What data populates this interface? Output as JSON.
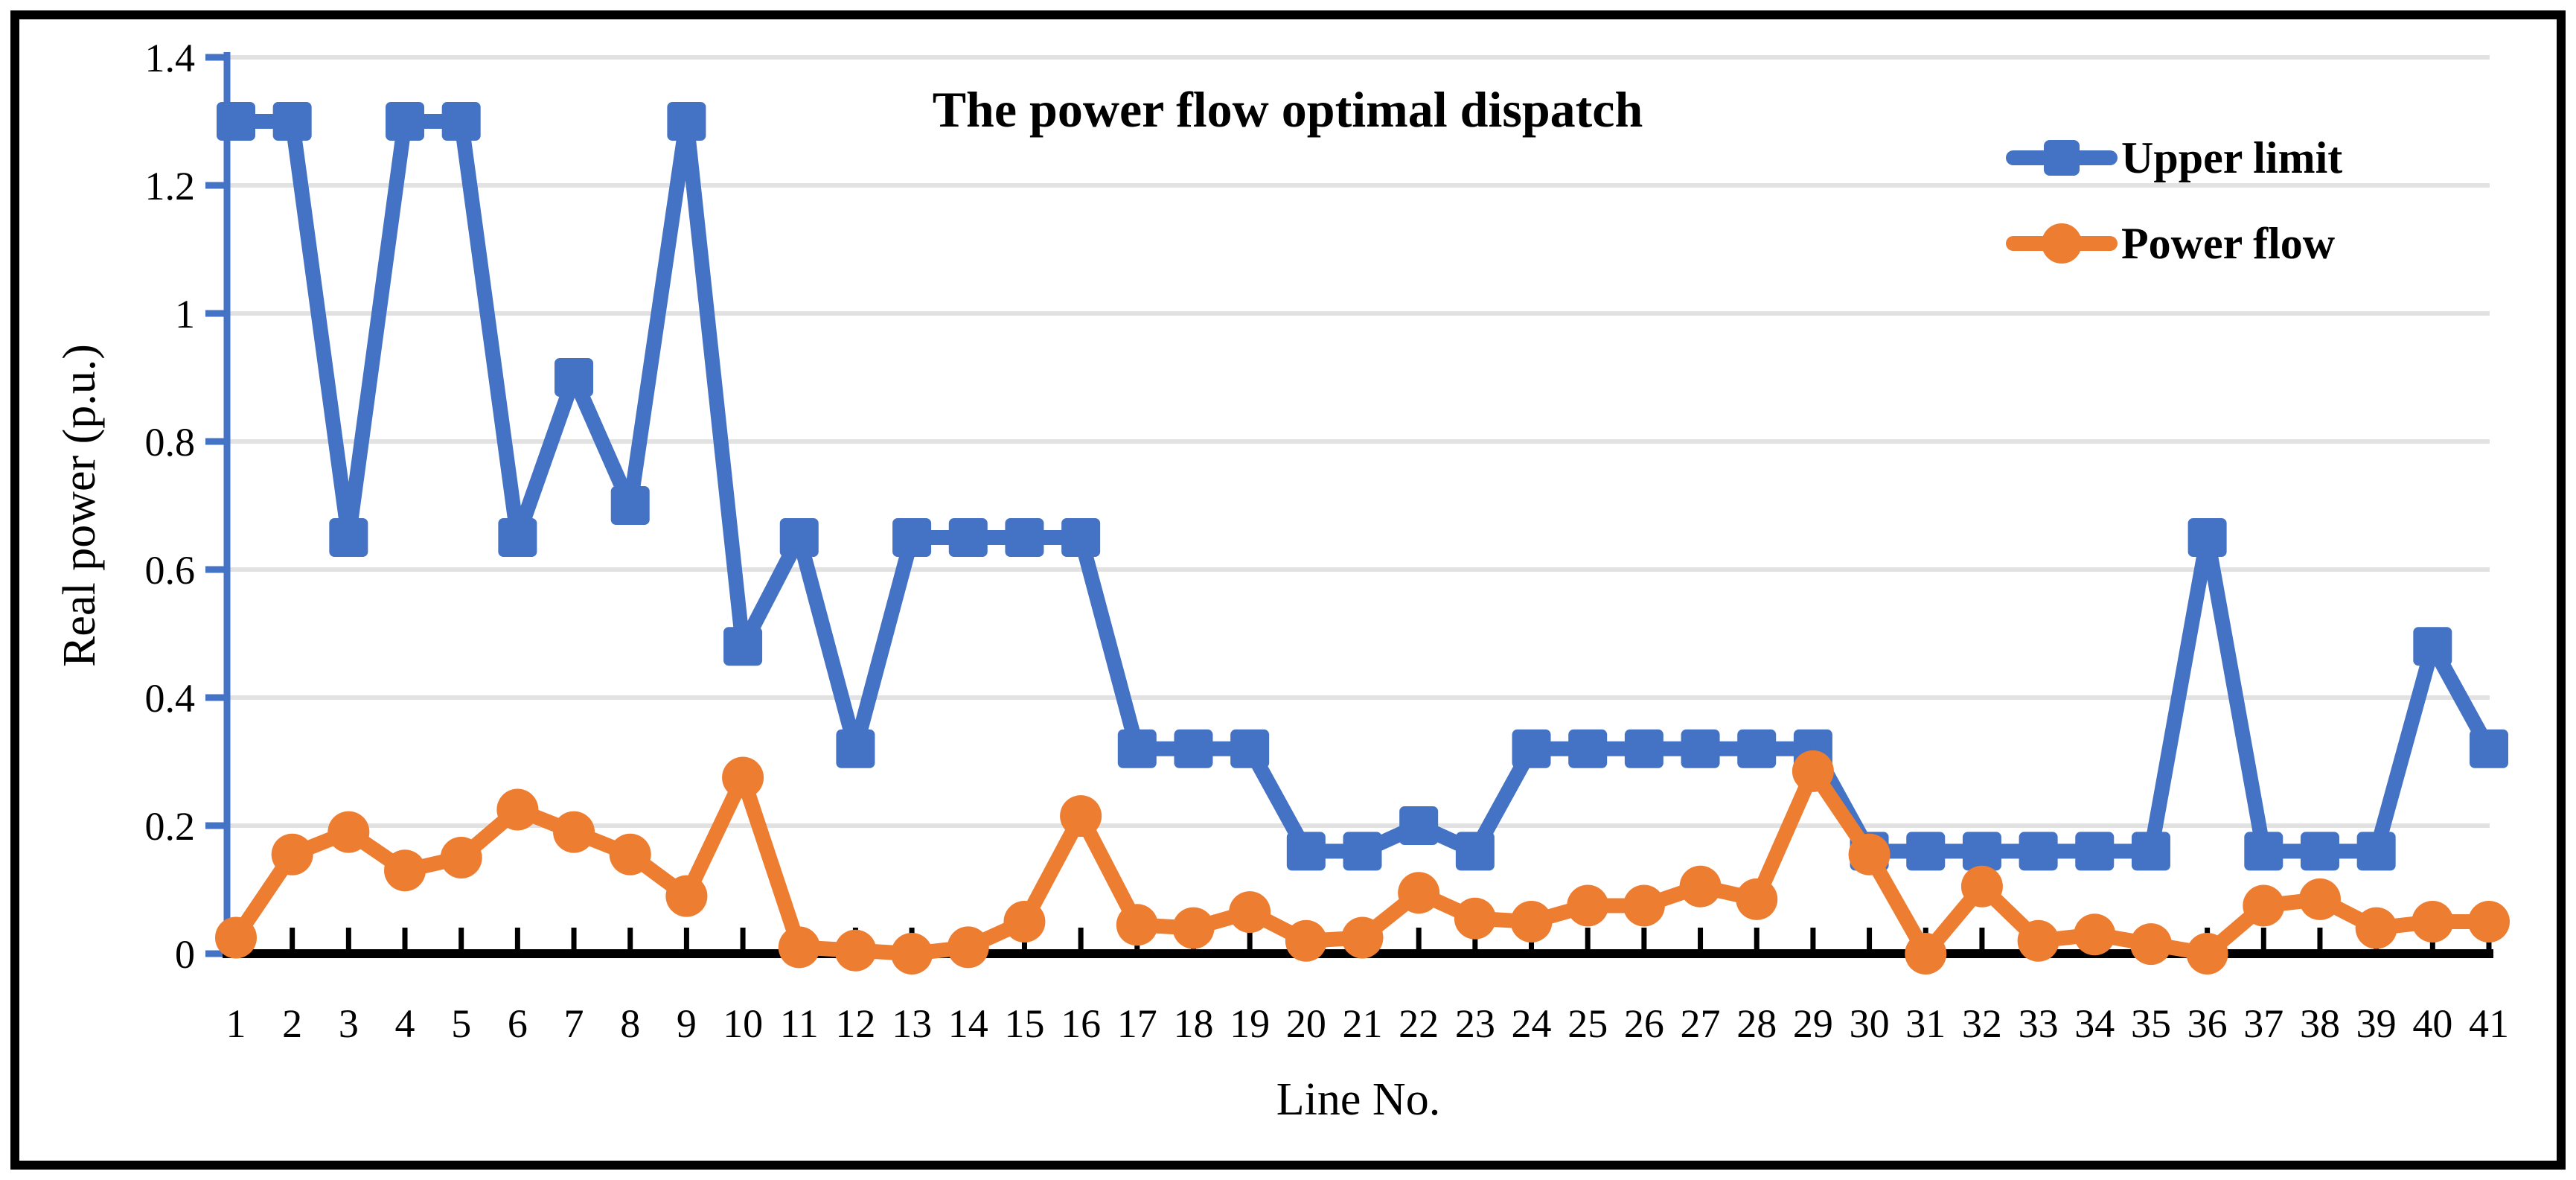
{
  "figure": {
    "title": "The power flow optimal dispatch",
    "x_axis_title": "Line No.",
    "y_axis_title": "Real power (p.u.)",
    "legend": {
      "position": "top-right",
      "entries": [
        {
          "label": "Upper limit",
          "marker": "square",
          "color": "#4472C4"
        },
        {
          "label": "Power flow",
          "marker": "circle",
          "color": "#ED7D31"
        }
      ]
    }
  },
  "chart_data": {
    "type": "line",
    "title": "The power flow optimal dispatch",
    "xlabel": "Line No.",
    "ylabel": "Real power (p.u.)",
    "categories": [
      1,
      2,
      3,
      4,
      5,
      6,
      7,
      8,
      9,
      10,
      11,
      12,
      13,
      14,
      15,
      16,
      17,
      18,
      19,
      20,
      21,
      22,
      23,
      24,
      25,
      26,
      27,
      28,
      29,
      30,
      31,
      32,
      33,
      34,
      35,
      36,
      37,
      38,
      39,
      40,
      41
    ],
    "series": [
      {
        "name": "Upper limit",
        "color": "#4472C4",
        "marker": "square",
        "values": [
          1.3,
          1.3,
          0.65,
          1.3,
          1.3,
          0.65,
          0.9,
          0.7,
          1.3,
          0.48,
          0.65,
          0.32,
          0.65,
          0.65,
          0.65,
          0.65,
          0.32,
          0.32,
          0.32,
          0.16,
          0.16,
          0.2,
          0.16,
          0.32,
          0.32,
          0.32,
          0.32,
          0.32,
          0.32,
          0.16,
          0.16,
          0.16,
          0.16,
          0.16,
          0.16,
          0.65,
          0.16,
          0.16,
          0.16,
          0.48,
          0.32
        ]
      },
      {
        "name": "Power flow",
        "color": "#ED7D31",
        "marker": "circle",
        "values": [
          0.025,
          0.155,
          0.19,
          0.13,
          0.15,
          0.225,
          0.19,
          0.155,
          0.09,
          0.275,
          0.01,
          0.005,
          0,
          0.01,
          0.05,
          0.215,
          0.045,
          0.04,
          0.065,
          0.02,
          0.025,
          0.095,
          0.055,
          0.05,
          0.075,
          0.075,
          0.105,
          0.085,
          0.285,
          0.155,
          0,
          0.105,
          0.02,
          0.03,
          0.015,
          0,
          0.075,
          0.085,
          0.04,
          0.05,
          0.05
        ]
      }
    ],
    "ylim": [
      0,
      1.4
    ],
    "y_ticks": [
      "0",
      "0.2",
      "0.4",
      "0.6",
      "0.8",
      "1",
      "1.2",
      "1.4"
    ],
    "grid": "horizontal",
    "legend_position": "top-right",
    "colors": {
      "y_axis": "#4472C4",
      "x_axis": "#000000",
      "gridline": "#E2E2E2",
      "border": "#000000",
      "text": "#000000"
    }
  }
}
